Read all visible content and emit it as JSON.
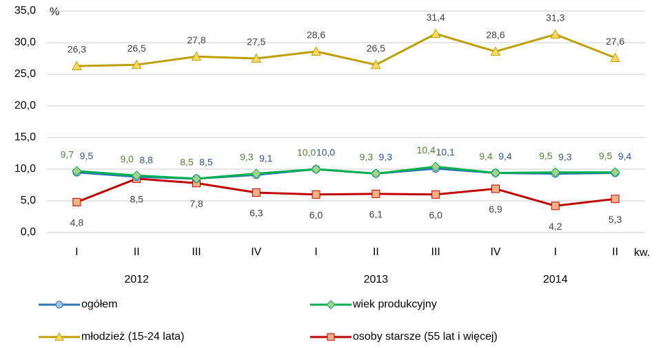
{
  "chart_data": {
    "type": "line",
    "y_unit": "%",
    "x_unit": "kw.",
    "categories": [
      "I",
      "II",
      "III",
      "IV",
      "I",
      "II",
      "III",
      "IV",
      "I",
      "II"
    ],
    "year_labels": [
      "2012",
      "2013",
      "2014"
    ],
    "ylim": [
      0,
      35
    ],
    "yticks": [
      {
        "value": 0,
        "label": "0,0"
      },
      {
        "value": 5,
        "label": "5,0"
      },
      {
        "value": 10,
        "label": "10,0"
      },
      {
        "value": 15,
        "label": "15,0"
      },
      {
        "value": 20,
        "label": "20,0"
      },
      {
        "value": 25,
        "label": "25,0"
      },
      {
        "value": 30,
        "label": "30,0"
      },
      {
        "value": 35,
        "label": "35,0"
      }
    ],
    "grid": true,
    "series": [
      {
        "name": "ogółem",
        "color": "#2e75b6",
        "marker_fill": "#9dc3e6",
        "marker": "circle",
        "label_color": "#2f5597",
        "values": [
          9.5,
          8.8,
          8.5,
          9.1,
          10.0,
          9.3,
          10.1,
          9.4,
          9.3,
          9.4
        ],
        "value_labels": [
          "9,5",
          "8,8",
          "8,5",
          "9,1",
          "10,0",
          "9,3",
          "10,1",
          "9,4",
          "9,3",
          "9,4"
        ]
      },
      {
        "name": "wiek produkcyjny",
        "color": "#00b050",
        "marker_fill": "#a9d18e",
        "marker": "diamond",
        "label_color": "#548235",
        "values": [
          9.7,
          9.0,
          8.5,
          9.3,
          10.0,
          9.3,
          10.4,
          9.4,
          9.5,
          9.5
        ],
        "value_labels": [
          "9,7",
          "9,0",
          "8,5",
          "9,3",
          "10,0",
          "9,3",
          "10,4",
          "9,4",
          "9,5",
          "9,5"
        ]
      },
      {
        "name": "młodzież (15-24 lata)",
        "color": "#bf9f00",
        "marker_fill": "#ffd966",
        "marker": "triangle",
        "label_color": "#404040",
        "values": [
          26.3,
          26.5,
          27.8,
          27.5,
          28.6,
          26.5,
          31.4,
          28.6,
          31.3,
          27.6
        ],
        "value_labels": [
          "26,3",
          "26,5",
          "27,8",
          "27,5",
          "28,6",
          "26,5",
          "31,4",
          "28,6",
          "31,3",
          "27,6"
        ]
      },
      {
        "name": "osoby starsze (55 lat i więcej)",
        "color": "#c00000",
        "marker_fill": "#f4b183",
        "marker": "square",
        "label_color": "#404040",
        "values": [
          4.8,
          8.5,
          7.8,
          6.3,
          6.0,
          6.1,
          6.0,
          6.9,
          4.2,
          5.3
        ],
        "value_labels": [
          "4,8",
          "8,5",
          "7,8",
          "6,3",
          "6,0",
          "6,1",
          "6,0",
          "6,9",
          "4,2",
          "5,3"
        ]
      }
    ]
  }
}
